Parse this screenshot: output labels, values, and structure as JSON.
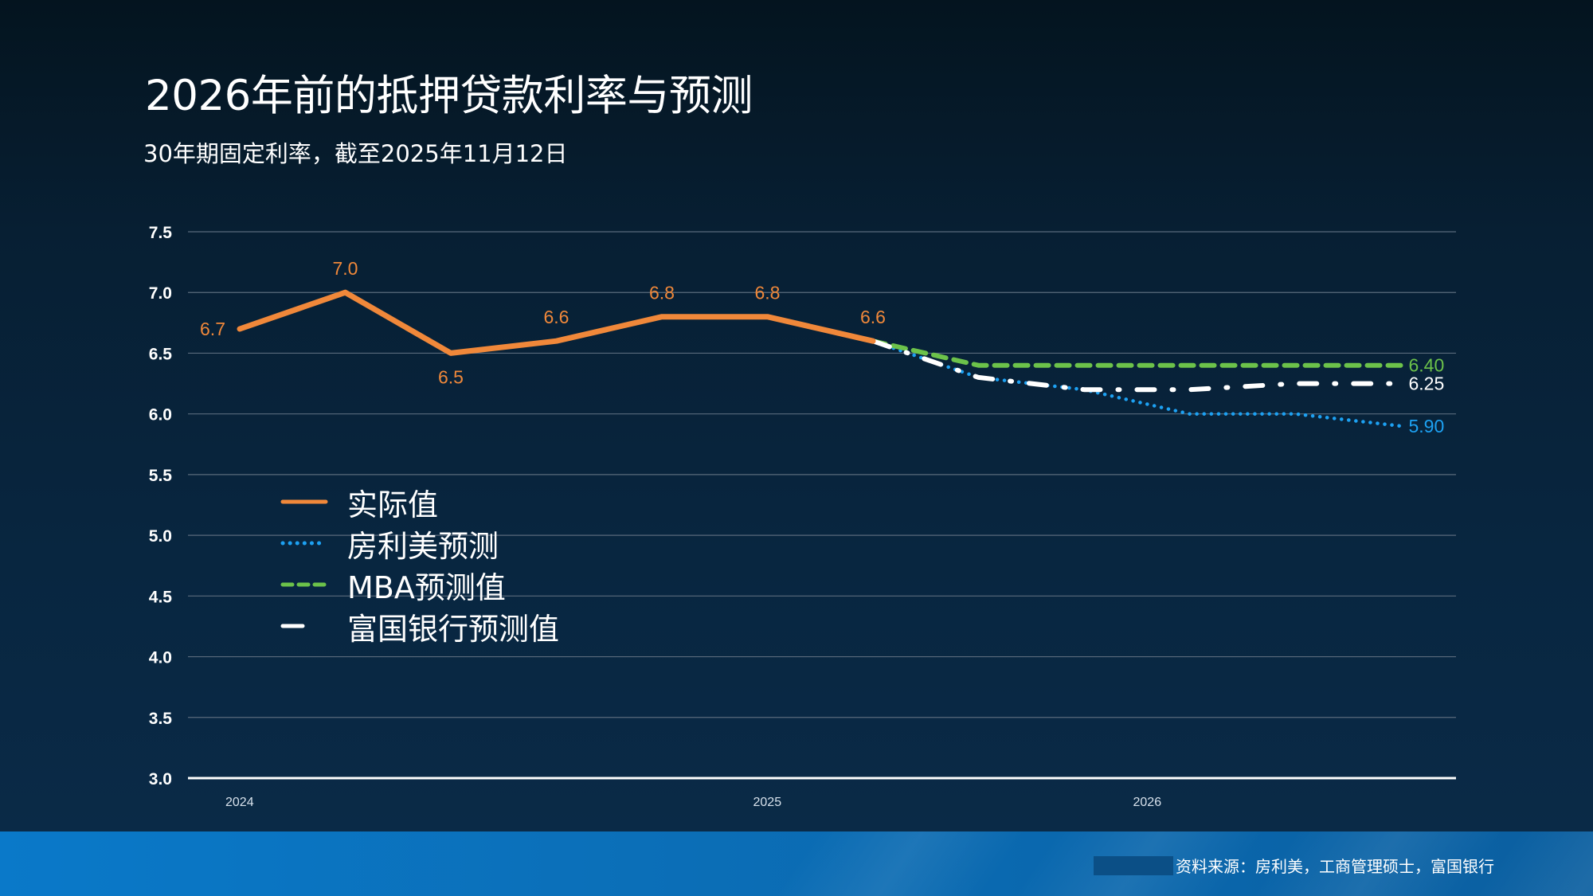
{
  "header": {
    "title": "2026年前的抵押贷款利率与预测",
    "subtitle": "30年期固定利率，截至2025年11月12日"
  },
  "footer": {
    "source": "资料来源：房利美，工商管理硕士，富国银行"
  },
  "colors": {
    "actual": "#f0883a",
    "fannie": "#1da1f2",
    "mba": "#6cc24a",
    "wells": "#ffffff",
    "grid": "#5a6b7c",
    "axis_text": "#ffffff"
  },
  "chart_data": {
    "type": "line",
    "title": "2026年前的抵押贷款利率与预测",
    "subtitle": "30年期固定利率，截至2025年11月12日",
    "xlabel": "",
    "ylabel": "",
    "ylim": [
      3.0,
      7.5
    ],
    "yticks": [
      "7.5",
      "7.0",
      "6.5",
      "6.0",
      "5.5",
      "5.0",
      "4.5",
      "4.0",
      "3.5",
      "3.0"
    ],
    "ytick_values": [
      7.5,
      7.0,
      6.5,
      6.0,
      5.5,
      5.0,
      4.5,
      4.0,
      3.5,
      3.0
    ],
    "x_range": [
      0,
      12
    ],
    "xticks": [
      {
        "label": "2024",
        "x": 0
      },
      {
        "label": "2025",
        "x": 5
      },
      {
        "label": "2026",
        "x": 8.6
      }
    ],
    "grid": true,
    "legend_position": "center-left",
    "series": [
      {
        "key": "actual",
        "name": "实际值",
        "style": "solid",
        "points": [
          [
            0.0,
            6.7
          ],
          [
            1.0,
            7.0
          ],
          [
            2.0,
            6.5
          ],
          [
            3.0,
            6.6
          ],
          [
            4.0,
            6.8
          ],
          [
            5.0,
            6.8
          ],
          [
            6.0,
            6.6
          ]
        ],
        "labels": [
          {
            "i": 0,
            "text": "6.7",
            "pos": "left"
          },
          {
            "i": 1,
            "text": "7.0",
            "pos": "above"
          },
          {
            "i": 2,
            "text": "6.5",
            "pos": "below"
          },
          {
            "i": 3,
            "text": "6.6",
            "pos": "above"
          },
          {
            "i": 4,
            "text": "6.8",
            "pos": "above"
          },
          {
            "i": 5,
            "text": "6.8",
            "pos": "above"
          },
          {
            "i": 6,
            "text": "6.6",
            "pos": "above"
          }
        ]
      },
      {
        "key": "fannie",
        "name": "房利美预测",
        "style": "dotted",
        "points": [
          [
            6.0,
            6.6
          ],
          [
            7.0,
            6.3
          ],
          [
            8.0,
            6.2
          ],
          [
            9.0,
            6.0
          ],
          [
            10.0,
            6.0
          ],
          [
            11.0,
            5.9
          ]
        ],
        "labels": [
          {
            "i": 5,
            "text": "5.90",
            "pos": "right"
          }
        ]
      },
      {
        "key": "mba",
        "name": "MBA预测值",
        "style": "dashed",
        "points": [
          [
            6.0,
            6.6
          ],
          [
            7.0,
            6.4
          ],
          [
            8.0,
            6.4
          ],
          [
            9.0,
            6.4
          ],
          [
            10.0,
            6.4
          ],
          [
            11.0,
            6.4
          ]
        ],
        "labels": [
          {
            "i": 5,
            "text": "6.40",
            "pos": "right"
          }
        ]
      },
      {
        "key": "wells",
        "name": "富国银行预测值",
        "style": "dashdot",
        "points": [
          [
            6.0,
            6.6
          ],
          [
            7.0,
            6.3
          ],
          [
            8.0,
            6.2
          ],
          [
            9.0,
            6.2
          ],
          [
            10.0,
            6.25
          ],
          [
            11.0,
            6.25
          ]
        ],
        "labels": [
          {
            "i": 5,
            "text": "6.25",
            "pos": "right"
          }
        ]
      }
    ]
  }
}
